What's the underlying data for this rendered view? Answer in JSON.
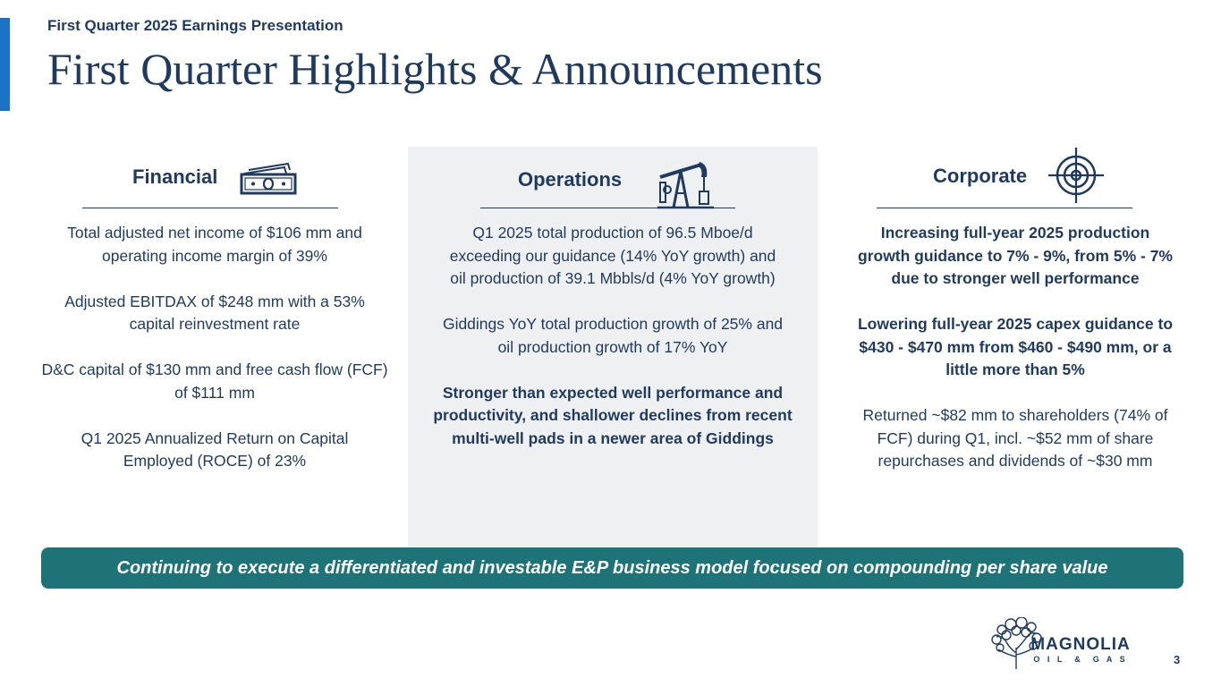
{
  "header": {
    "supertitle": "First Quarter 2025 Earnings Presentation",
    "title": "First Quarter Highlights & Announcements"
  },
  "columns": {
    "financial": {
      "title": "Financial",
      "icon": "money-icon",
      "paragraphs": [
        {
          "text": "Total adjusted net income of $106 mm and operating income margin of 39%"
        },
        {
          "text": "Adjusted EBITDAX of $248 mm with a 53% capital reinvestment rate"
        },
        {
          "text": "D&C capital of $130 mm and free cash flow (FCF) of $111 mm"
        },
        {
          "text": "Q1 2025 Annualized Return on Capital Employed (ROCE) of 23%"
        }
      ]
    },
    "operations": {
      "title": "Operations",
      "icon": "pumpjack-icon",
      "paragraphs": [
        {
          "text": "Q1 2025 total production of 96.5 Mboe/d exceeding our guidance  (14% YoY growth) and oil production of 39.1 Mbbls/d (4% YoY growth)"
        },
        {
          "text": "Giddings YoY total production growth of 25% and oil production growth of 17% YoY"
        },
        {
          "text": "Stronger than expected well performance and productivity, and shallower declines from recent multi-well pads in a newer area of Giddings"
        }
      ]
    },
    "corporate": {
      "title": "Corporate",
      "icon": "target-icon",
      "paragraphs": [
        {
          "text": "Increasing full-year 2025 production growth guidance to 7% - 9%, from 5% - 7% due to stronger well performance"
        },
        {
          "text": "Lowering full-year 2025 capex guidance to $430 - $470 mm from $460 - $490 mm, or a little more than 5%"
        },
        {
          "text": "Returned ~$82 mm to shareholders (74% of FCF) during Q1, incl. ~$52 mm of share repurchases and dividends of ~$30 mm"
        }
      ]
    }
  },
  "banner": {
    "text": "Continuing to execute a differentiated and investable E&P business model focused on compounding per share value"
  },
  "logo": {
    "name": "MAGNOLIA",
    "subtitle": "O I L  &  G A S"
  },
  "footer": {
    "page_number": "3"
  },
  "colors": {
    "navy": "#1f3a5f",
    "accent_blue": "#1a73c4",
    "banner_teal": "#1e7376",
    "panel_gray": "#eff0f2"
  }
}
